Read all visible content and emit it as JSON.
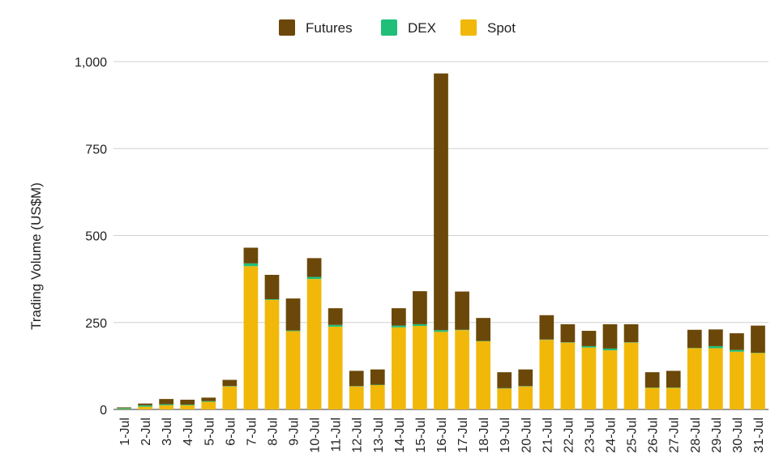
{
  "chart_data": {
    "type": "bar",
    "stacked": true,
    "title": "",
    "xlabel": "",
    "ylabel": "Trading Volume (US$M)",
    "ylim": [
      0,
      1000
    ],
    "yticks": [
      0,
      250,
      500,
      750,
      1000
    ],
    "ytick_labels": [
      "0",
      "250",
      "500",
      "750",
      "1,000"
    ],
    "grid": true,
    "legend_position": "top-center",
    "categories": [
      "1-Jul",
      "2-Jul",
      "3-Jul",
      "4-Jul",
      "5-Jul",
      "6-Jul",
      "7-Jul",
      "8-Jul",
      "9-Jul",
      "10-Jul",
      "11-Jul",
      "12-Jul",
      "13-Jul",
      "14-Jul",
      "15-Jul",
      "16-Jul",
      "17-Jul",
      "18-Jul",
      "19-Jul",
      "20-Jul",
      "21-Jul",
      "22-Jul",
      "23-Jul",
      "24-Jul",
      "25-Jul",
      "26-Jul",
      "27-Jul",
      "28-Jul",
      "29-Jul",
      "30-Jul",
      "31-Jul"
    ],
    "series": [
      {
        "name": "Spot",
        "color": "#f1b80a",
        "values": [
          1,
          8,
          12,
          12,
          22,
          66,
          412,
          315,
          225,
          375,
          238,
          66,
          70,
          236,
          240,
          223,
          228,
          196,
          60,
          66,
          200,
          192,
          178,
          170,
          192,
          62,
          62,
          176,
          176,
          166,
          162
        ]
      },
      {
        "name": "DEX",
        "color": "#1fbf7a",
        "values": [
          3,
          4,
          3,
          2,
          2,
          1,
          8,
          2,
          2,
          6,
          5,
          1,
          1,
          5,
          5,
          5,
          1,
          1,
          1,
          1,
          1,
          1,
          4,
          5,
          1,
          1,
          1,
          1,
          6,
          5,
          1
        ]
      },
      {
        "name": "Futures",
        "color": "#6b4809",
        "values": [
          2,
          5,
          15,
          14,
          10,
          18,
          45,
          70,
          92,
          54,
          48,
          44,
          44,
          50,
          95,
          738,
          110,
          66,
          46,
          48,
          70,
          52,
          44,
          70,
          52,
          44,
          48,
          52,
          48,
          48,
          78
        ]
      }
    ]
  }
}
